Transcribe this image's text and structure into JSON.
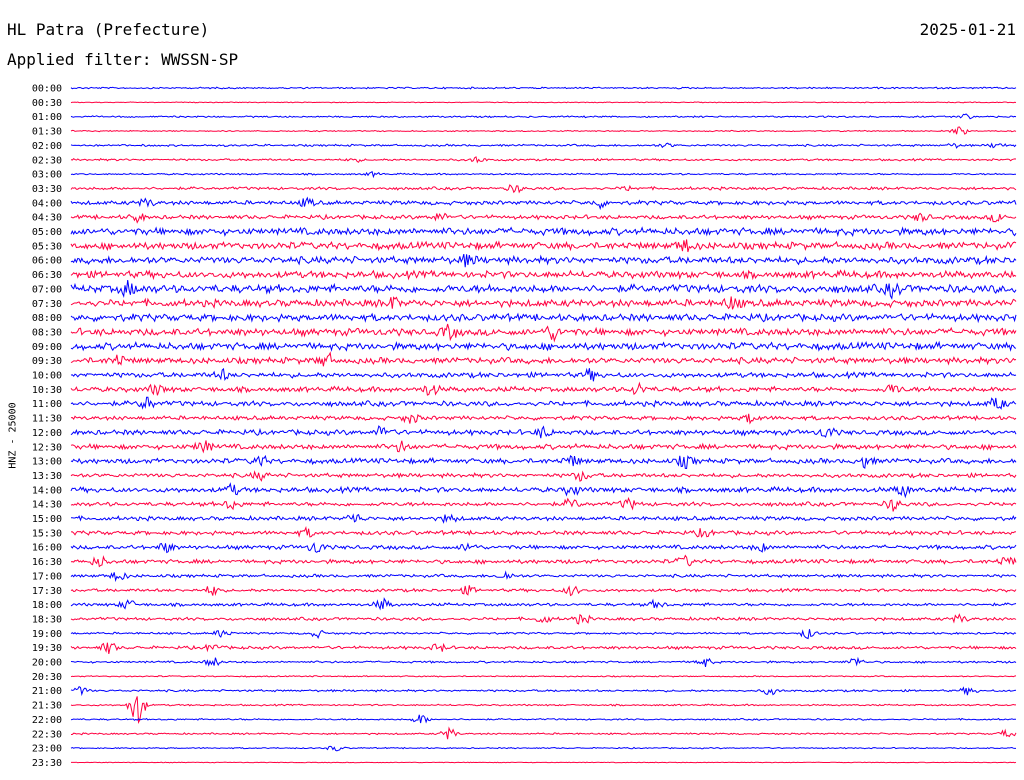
{
  "header": {
    "station": "HL Patra (Prefecture)",
    "date": "2025-01-21",
    "filter": "Applied filter: WWSSN-SP"
  },
  "chart_data": {
    "type": "line",
    "subtype": "helicorder",
    "ylabel": "HNZ - 25000",
    "row_interval_minutes": 30,
    "colors": {
      "even": "#0000ff",
      "odd": "#ff0040"
    },
    "rows": [
      {
        "label": "00:00",
        "amplitude": 0.8,
        "events": []
      },
      {
        "label": "00:30",
        "amplitude": 0.4,
        "events": []
      },
      {
        "label": "01:00",
        "amplitude": 0.8,
        "events": [
          {
            "t": 0.945,
            "a": 3
          }
        ]
      },
      {
        "label": "01:30",
        "amplitude": 0.6,
        "events": [
          {
            "t": 0.94,
            "a": 5
          }
        ]
      },
      {
        "label": "02:00",
        "amplitude": 1.0,
        "events": [
          {
            "t": 0.63,
            "a": 2
          },
          {
            "t": 0.935,
            "a": 2
          },
          {
            "t": 0.98,
            "a": 3
          }
        ]
      },
      {
        "label": "02:30",
        "amplitude": 1.0,
        "events": [
          {
            "t": 0.3,
            "a": 2
          },
          {
            "t": 0.43,
            "a": 3
          }
        ]
      },
      {
        "label": "03:00",
        "amplitude": 0.8,
        "events": [
          {
            "t": 0.32,
            "a": 2
          }
        ]
      },
      {
        "label": "03:30",
        "amplitude": 1.4,
        "events": [
          {
            "t": 0.47,
            "a": 4
          },
          {
            "t": 0.59,
            "a": 2
          }
        ]
      },
      {
        "label": "04:00",
        "amplitude": 2.0,
        "events": [
          {
            "t": 0.08,
            "a": 4
          },
          {
            "t": 0.25,
            "a": 4
          },
          {
            "t": 0.56,
            "a": 4
          }
        ]
      },
      {
        "label": "04:30",
        "amplitude": 2.0,
        "events": [
          {
            "t": 0.07,
            "a": 4
          },
          {
            "t": 0.39,
            "a": 4
          },
          {
            "t": 0.9,
            "a": 4
          },
          {
            "t": 0.98,
            "a": 4
          }
        ]
      },
      {
        "label": "05:00",
        "amplitude": 3.5,
        "events": []
      },
      {
        "label": "05:30",
        "amplitude": 3.5,
        "events": [
          {
            "t": 0.65,
            "a": 6
          }
        ]
      },
      {
        "label": "06:00",
        "amplitude": 3.5,
        "events": [
          {
            "t": 0.42,
            "a": 5
          }
        ]
      },
      {
        "label": "06:30",
        "amplitude": 3.5,
        "events": []
      },
      {
        "label": "07:00",
        "amplitude": 4.0,
        "events": [
          {
            "t": 0.06,
            "a": 6
          },
          {
            "t": 0.87,
            "a": 6
          }
        ]
      },
      {
        "label": "07:30",
        "amplitude": 3.5,
        "events": [
          {
            "t": 0.34,
            "a": 5
          },
          {
            "t": 0.7,
            "a": 6
          }
        ]
      },
      {
        "label": "08:00",
        "amplitude": 3.5,
        "events": []
      },
      {
        "label": "08:30",
        "amplitude": 3.5,
        "events": [
          {
            "t": 0.4,
            "a": 6
          },
          {
            "t": 0.51,
            "a": 7
          }
        ]
      },
      {
        "label": "09:00",
        "amplitude": 3.5,
        "events": []
      },
      {
        "label": "09:30",
        "amplitude": 3.0,
        "events": [
          {
            "t": 0.05,
            "a": 5
          },
          {
            "t": 0.27,
            "a": 7
          }
        ]
      },
      {
        "label": "10:00",
        "amplitude": 2.5,
        "events": [
          {
            "t": 0.16,
            "a": 5
          },
          {
            "t": 0.55,
            "a": 5
          }
        ]
      },
      {
        "label": "10:30",
        "amplitude": 2.5,
        "events": [
          {
            "t": 0.09,
            "a": 5
          },
          {
            "t": 0.38,
            "a": 6
          },
          {
            "t": 0.6,
            "a": 6
          },
          {
            "t": 0.87,
            "a": 5
          }
        ]
      },
      {
        "label": "11:00",
        "amplitude": 2.5,
        "events": [
          {
            "t": 0.08,
            "a": 6
          },
          {
            "t": 0.98,
            "a": 6
          }
        ]
      },
      {
        "label": "11:30",
        "amplitude": 2.0,
        "events": [
          {
            "t": 0.36,
            "a": 5
          },
          {
            "t": 0.72,
            "a": 5
          }
        ]
      },
      {
        "label": "12:00",
        "amplitude": 2.5,
        "events": [
          {
            "t": 0.33,
            "a": 7
          },
          {
            "t": 0.5,
            "a": 5
          },
          {
            "t": 0.8,
            "a": 5
          }
        ]
      },
      {
        "label": "12:30",
        "amplitude": 2.5,
        "events": [
          {
            "t": 0.14,
            "a": 6
          },
          {
            "t": 0.35,
            "a": 5
          }
        ]
      },
      {
        "label": "13:00",
        "amplitude": 2.5,
        "events": [
          {
            "t": 0.2,
            "a": 5
          },
          {
            "t": 0.53,
            "a": 5
          },
          {
            "t": 0.65,
            "a": 6
          },
          {
            "t": 0.84,
            "a": 6
          }
        ]
      },
      {
        "label": "13:30",
        "amplitude": 2.0,
        "events": [
          {
            "t": 0.2,
            "a": 4
          },
          {
            "t": 0.54,
            "a": 5
          }
        ]
      },
      {
        "label": "14:00",
        "amplitude": 2.5,
        "events": [
          {
            "t": 0.17,
            "a": 5
          },
          {
            "t": 0.53,
            "a": 5
          },
          {
            "t": 0.88,
            "a": 6
          }
        ]
      },
      {
        "label": "14:30",
        "amplitude": 2.0,
        "events": [
          {
            "t": 0.17,
            "a": 5
          },
          {
            "t": 0.53,
            "a": 5
          },
          {
            "t": 0.59,
            "a": 5
          },
          {
            "t": 0.87,
            "a": 6
          }
        ]
      },
      {
        "label": "15:00",
        "amplitude": 2.0,
        "events": [
          {
            "t": 0.3,
            "a": 5
          },
          {
            "t": 0.4,
            "a": 4
          }
        ]
      },
      {
        "label": "15:30",
        "amplitude": 2.0,
        "events": [
          {
            "t": 0.25,
            "a": 4
          },
          {
            "t": 0.67,
            "a": 4
          }
        ]
      },
      {
        "label": "16:00",
        "amplitude": 2.0,
        "events": [
          {
            "t": 0.1,
            "a": 5
          },
          {
            "t": 0.26,
            "a": 6
          },
          {
            "t": 0.42,
            "a": 4
          },
          {
            "t": 0.73,
            "a": 4
          }
        ]
      },
      {
        "label": "16:30",
        "amplitude": 2.0,
        "events": [
          {
            "t": 0.03,
            "a": 5
          },
          {
            "t": 0.65,
            "a": 5
          },
          {
            "t": 0.99,
            "a": 5
          }
        ]
      },
      {
        "label": "17:00",
        "amplitude": 1.5,
        "events": [
          {
            "t": 0.05,
            "a": 5
          },
          {
            "t": 0.46,
            "a": 4
          }
        ]
      },
      {
        "label": "17:30",
        "amplitude": 1.5,
        "events": [
          {
            "t": 0.15,
            "a": 5
          },
          {
            "t": 0.42,
            "a": 4
          },
          {
            "t": 0.53,
            "a": 5
          }
        ]
      },
      {
        "label": "18:00",
        "amplitude": 1.5,
        "events": [
          {
            "t": 0.06,
            "a": 5
          },
          {
            "t": 0.33,
            "a": 6
          },
          {
            "t": 0.62,
            "a": 4
          }
        ]
      },
      {
        "label": "18:30",
        "amplitude": 1.5,
        "events": [
          {
            "t": 0.5,
            "a": 4
          },
          {
            "t": 0.54,
            "a": 5
          },
          {
            "t": 0.94,
            "a": 4
          }
        ]
      },
      {
        "label": "19:00",
        "amplitude": 1.0,
        "events": [
          {
            "t": 0.16,
            "a": 4
          },
          {
            "t": 0.26,
            "a": 4
          },
          {
            "t": 0.78,
            "a": 5
          }
        ]
      },
      {
        "label": "19:30",
        "amplitude": 1.5,
        "events": [
          {
            "t": 0.04,
            "a": 6
          },
          {
            "t": 0.15,
            "a": 4
          },
          {
            "t": 0.39,
            "a": 4
          }
        ]
      },
      {
        "label": "20:00",
        "amplitude": 1.0,
        "events": [
          {
            "t": 0.15,
            "a": 5
          },
          {
            "t": 0.67,
            "a": 5
          },
          {
            "t": 0.83,
            "a": 5
          }
        ]
      },
      {
        "label": "20:30",
        "amplitude": 0.6,
        "events": []
      },
      {
        "label": "21:00",
        "amplitude": 1.0,
        "events": [
          {
            "t": 0.01,
            "a": 4
          },
          {
            "t": 0.74,
            "a": 4
          },
          {
            "t": 0.95,
            "a": 4
          }
        ]
      },
      {
        "label": "21:30",
        "amplitude": 0.8,
        "events": [
          {
            "t": 0.07,
            "a": 20
          }
        ]
      },
      {
        "label": "22:00",
        "amplitude": 0.8,
        "events": [
          {
            "t": 0.37,
            "a": 5
          }
        ]
      },
      {
        "label": "22:30",
        "amplitude": 0.8,
        "events": [
          {
            "t": 0.4,
            "a": 6
          },
          {
            "t": 0.99,
            "a": 4
          }
        ]
      },
      {
        "label": "23:00",
        "amplitude": 0.6,
        "events": [
          {
            "t": 0.28,
            "a": 3
          }
        ]
      },
      {
        "label": "23:30",
        "amplitude": 0.3,
        "events": []
      }
    ]
  }
}
